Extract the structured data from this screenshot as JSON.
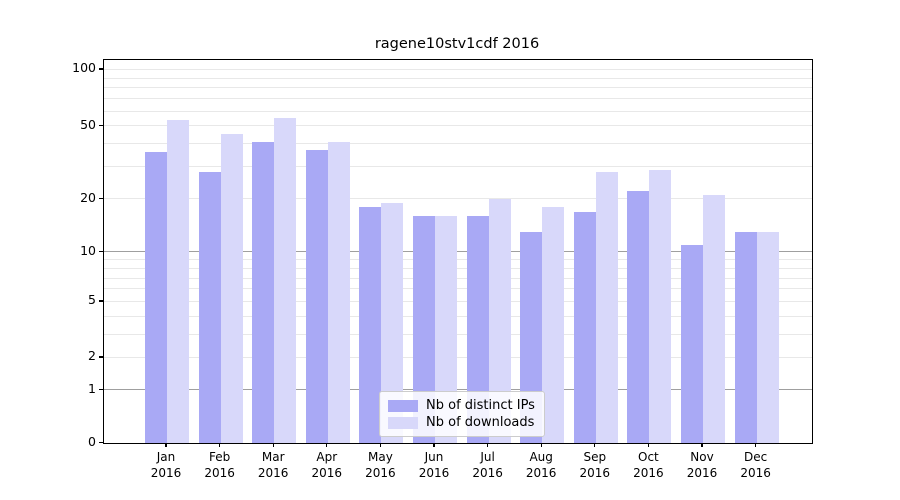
{
  "chart_data": {
    "type": "bar",
    "title": "ragene10stv1cdf 2016",
    "categories": [
      "Jan",
      "Feb",
      "Mar",
      "Apr",
      "May",
      "Jun",
      "Jul",
      "Aug",
      "Sep",
      "Oct",
      "Nov",
      "Dec"
    ],
    "year": "2016",
    "series": [
      {
        "name": "Nb of distinct IPs",
        "color": "#a9a9f5",
        "values": [
          36,
          28,
          41,
          37,
          18,
          16,
          16,
          13,
          17,
          22,
          11,
          13
        ]
      },
      {
        "name": "Nb of downloads",
        "color": "#d8d8fa",
        "values": [
          54,
          45,
          55,
          41,
          19,
          16,
          20,
          18,
          28,
          29,
          21,
          13
        ]
      }
    ],
    "xlabel": "",
    "ylabel": "",
    "ylim": [
      0,
      100
    ],
    "yscale": "log10(value+1.1)",
    "yticks": [
      {
        "value": 100,
        "label": "100"
      },
      {
        "value": 50,
        "label": "50"
      },
      {
        "value": 20,
        "label": "20"
      },
      {
        "value": 10,
        "label": "10"
      },
      {
        "value": 5,
        "label": "5"
      },
      {
        "value": 2,
        "label": "2"
      },
      {
        "value": 1,
        "label": "1"
      },
      {
        "value": 0,
        "label": "0"
      }
    ],
    "grid": {
      "enabled": true,
      "major_values": [
        1,
        10
      ],
      "minor_values": [
        2,
        3,
        4,
        5,
        6,
        7,
        8,
        9,
        20,
        30,
        40,
        50,
        60,
        70,
        80,
        90,
        100
      ]
    },
    "legend_position": "bottom-center",
    "colors": {
      "major_grid": "#9f9f9f",
      "minor_grid": "#e8e8e8",
      "axis": "#000000",
      "background": "#ffffff"
    }
  }
}
